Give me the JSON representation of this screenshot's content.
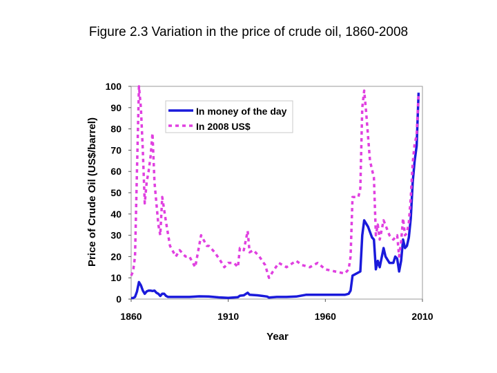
{
  "title": "Figure 2.3 Variation in the price of crude oil, 1860-2008",
  "chart_data": {
    "type": "line",
    "title": "Figure 2.3 Variation in the price of crude oil, 1860-2008",
    "xlabel": "Year",
    "ylabel": "Price of Crude Oil (US$/barrel)",
    "xlim": [
      1860,
      2010
    ],
    "ylim": [
      0,
      100
    ],
    "xticks": [
      "1860",
      "1910",
      "1960",
      "2010"
    ],
    "yticks": [
      "0",
      "10",
      "20",
      "30",
      "40",
      "50",
      "60",
      "70",
      "80",
      "90",
      "100"
    ],
    "legend_position": "top-left",
    "series": [
      {
        "name": "In money of the day",
        "style": "solid",
        "color": "#1a1adb",
        "x": [
          1860,
          1861,
          1862,
          1863,
          1864,
          1865,
          1866,
          1867,
          1868,
          1869,
          1870,
          1871,
          1872,
          1873,
          1874,
          1875,
          1876,
          1877,
          1878,
          1879,
          1880,
          1885,
          1890,
          1895,
          1900,
          1905,
          1910,
          1915,
          1916,
          1918,
          1920,
          1921,
          1925,
          1930,
          1931,
          1935,
          1940,
          1945,
          1950,
          1955,
          1960,
          1965,
          1970,
          1972,
          1973,
          1974,
          1978,
          1979,
          1980,
          1982,
          1984,
          1985,
          1986,
          1987,
          1988,
          1990,
          1991,
          1993,
          1995,
          1996,
          1997,
          1998,
          1999,
          2000,
          2001,
          2002,
          2003,
          2004,
          2005,
          2006,
          2007,
          2008
        ],
        "y": [
          0.5,
          0.5,
          1,
          3.5,
          8,
          6.5,
          4,
          2.5,
          3.6,
          4,
          4,
          3.8,
          4,
          3,
          2.5,
          1.5,
          2.5,
          2.5,
          1.5,
          1,
          1,
          1,
          1,
          1.3,
          1.2,
          0.8,
          0.6,
          0.9,
          1.6,
          1.8,
          3,
          2,
          1.8,
          1.2,
          0.7,
          1,
          1,
          1.2,
          2,
          2,
          2,
          2,
          2,
          2.5,
          4,
          11,
          13,
          30,
          37,
          34,
          29,
          28,
          14,
          18,
          15,
          24,
          20,
          17,
          17,
          20,
          19,
          13,
          18,
          28,
          24,
          25,
          29,
          38,
          55,
          65,
          72,
          97
        ]
      },
      {
        "name": "In 2008 US$",
        "style": "dashed",
        "color": "#e040e0",
        "x": [
          1860,
          1861,
          1862,
          1863,
          1864,
          1865,
          1866,
          1867,
          1868,
          1869,
          1870,
          1871,
          1872,
          1873,
          1874,
          1875,
          1876,
          1878,
          1880,
          1883,
          1885,
          1888,
          1890,
          1893,
          1896,
          1899,
          1900,
          1903,
          1906,
          1908,
          1910,
          1913,
          1915,
          1916,
          1918,
          1920,
          1921,
          1923,
          1926,
          1929,
          1931,
          1933,
          1936,
          1940,
          1945,
          1948,
          1952,
          1956,
          1960,
          1965,
          1970,
          1972,
          1973,
          1974,
          1975,
          1977,
          1978,
          1979,
          1980,
          1981,
          1983,
          1985,
          1986,
          1987,
          1988,
          1990,
          1993,
          1995,
          1997,
          1998,
          1999,
          2000,
          2001,
          2002,
          2003,
          2004,
          2005,
          2006,
          2007,
          2008
        ],
        "y": [
          11,
          13,
          20,
          60,
          100,
          90,
          70,
          45,
          55,
          60,
          67,
          78,
          55,
          45,
          35,
          30,
          48,
          36,
          25,
          20,
          23,
          20,
          20,
          15,
          30,
          25,
          25,
          22,
          18,
          15,
          17,
          17,
          15,
          24,
          23,
          32,
          22,
          23,
          20,
          16,
          10,
          13,
          17,
          15,
          18,
          16,
          15,
          17,
          14,
          13,
          12,
          14,
          20,
          48,
          48,
          48,
          52,
          90,
          98,
          88,
          65,
          57,
          30,
          35,
          28,
          37,
          30,
          28,
          30,
          20,
          27,
          38,
          30,
          31,
          36,
          48,
          64,
          73,
          77,
          97
        ]
      }
    ]
  }
}
